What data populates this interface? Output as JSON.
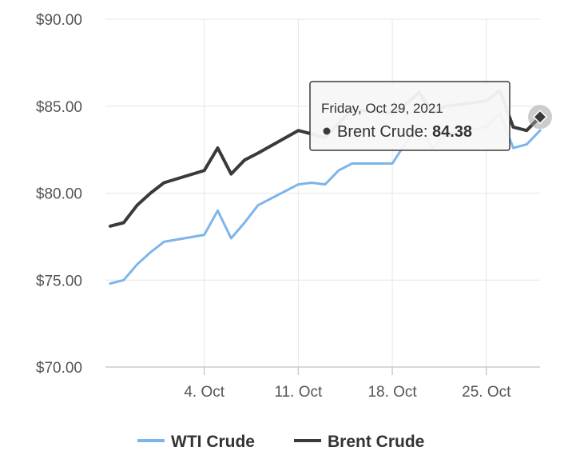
{
  "chart_data": {
    "type": "line",
    "x": [
      "2021-09-27",
      "2021-09-28",
      "2021-09-29",
      "2021-09-30",
      "2021-10-01",
      "2021-10-04",
      "2021-10-05",
      "2021-10-06",
      "2021-10-07",
      "2021-10-08",
      "2021-10-11",
      "2021-10-12",
      "2021-10-13",
      "2021-10-14",
      "2021-10-15",
      "2021-10-18",
      "2021-10-19",
      "2021-10-20",
      "2021-10-21",
      "2021-10-22",
      "2021-10-25",
      "2021-10-26",
      "2021-10-27",
      "2021-10-28",
      "2021-10-29"
    ],
    "series": [
      {
        "name": "WTI Crude",
        "color": "#7cb5ec",
        "values": [
          74.8,
          75.0,
          75.9,
          76.6,
          77.2,
          77.6,
          79.0,
          77.4,
          78.3,
          79.3,
          80.5,
          80.6,
          80.5,
          81.3,
          81.7,
          81.7,
          82.9,
          83.8,
          82.6,
          83.4,
          83.8,
          84.6,
          82.6,
          82.8,
          83.6
        ]
      },
      {
        "name": "Brent Crude",
        "color": "#3a3a3a",
        "values": [
          78.1,
          78.3,
          79.3,
          80.0,
          80.6,
          81.3,
          82.6,
          81.1,
          81.9,
          82.3,
          83.6,
          83.4,
          83.2,
          84.0,
          84.8,
          84.6,
          85.1,
          85.8,
          84.6,
          85.0,
          85.3,
          85.9,
          83.8,
          83.6,
          84.38
        ]
      }
    ],
    "x_ticks": [
      {
        "date": "2021-10-04",
        "label": "4. Oct"
      },
      {
        "date": "2021-10-11",
        "label": "11. Oct"
      },
      {
        "date": "2021-10-18",
        "label": "18. Oct"
      },
      {
        "date": "2021-10-25",
        "label": "25. Oct"
      }
    ],
    "y_ticks": [
      {
        "value": 90,
        "label": "$90.00"
      },
      {
        "value": 85,
        "label": "$85.00"
      },
      {
        "value": 80,
        "label": "$80.00"
      },
      {
        "value": 75,
        "label": "$75.00"
      },
      {
        "value": 70,
        "label": "$70.00"
      }
    ],
    "ylim": [
      70,
      90
    ],
    "grid": true,
    "legend_position": "bottom",
    "tooltip": {
      "date_label": "Friday, Oct 29, 2021",
      "series_label": "Brent Crude",
      "value_label": "84.38",
      "series_index": 1,
      "point_index": 24
    }
  }
}
